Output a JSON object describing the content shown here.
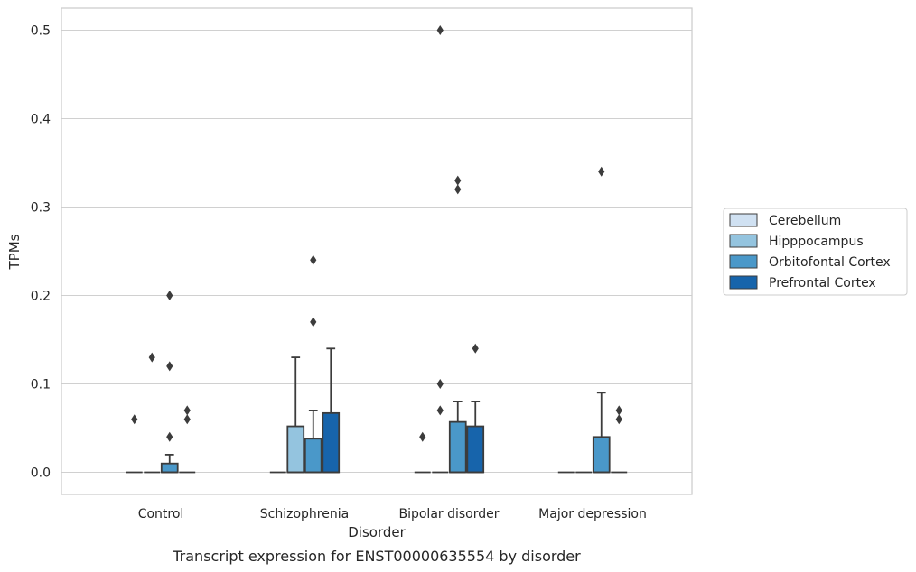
{
  "chart_data": {
    "type": "box",
    "title": "",
    "caption": "Transcript expression for ENST00000635554 by disorder",
    "xlabel": "Disorder",
    "ylabel": "TPMs",
    "ylim": [
      -0.025,
      0.525
    ],
    "yticks": [
      "0.0",
      "0.1",
      "0.2",
      "0.3",
      "0.4",
      "0.5"
    ],
    "categories": [
      "Control",
      "Schizophrenia",
      "Bipolar disorder",
      "Major depression"
    ],
    "grid": true,
    "legend_position": "right",
    "series": [
      {
        "name": "Cerebellum",
        "color": "#d0e1f2",
        "boxes": [
          {
            "q1": 0,
            "median": 0,
            "q3": 0,
            "whisker_low": 0,
            "whisker_high": 0,
            "outliers": [
              0.06
            ]
          },
          {
            "q1": 0,
            "median": 0,
            "q3": 0,
            "whisker_low": 0,
            "whisker_high": 0,
            "outliers": []
          },
          {
            "q1": 0,
            "median": 0,
            "q3": 0,
            "whisker_low": 0,
            "whisker_high": 0,
            "outliers": [
              0.04
            ]
          },
          {
            "q1": 0,
            "median": 0,
            "q3": 0,
            "whisker_low": 0,
            "whisker_high": 0,
            "outliers": []
          }
        ]
      },
      {
        "name": "Hipppocampus",
        "color": "#94c4df",
        "boxes": [
          {
            "q1": 0,
            "median": 0,
            "q3": 0,
            "whisker_low": 0,
            "whisker_high": 0,
            "outliers": [
              0.13
            ]
          },
          {
            "q1": 0,
            "median": 0,
            "q3": 0.052,
            "whisker_low": 0,
            "whisker_high": 0.13,
            "outliers": []
          },
          {
            "q1": 0,
            "median": 0,
            "q3": 0,
            "whisker_low": 0,
            "whisker_high": 0,
            "outliers": [
              0.07,
              0.1,
              0.5
            ]
          },
          {
            "q1": 0,
            "median": 0,
            "q3": 0,
            "whisker_low": 0,
            "whisker_high": 0,
            "outliers": []
          }
        ]
      },
      {
        "name": "Orbitofontal Cortex",
        "color": "#4a98c9",
        "boxes": [
          {
            "q1": 0,
            "median": 0,
            "q3": 0.01,
            "whisker_low": 0,
            "whisker_high": 0.02,
            "outliers": [
              0.04,
              0.12,
              0.2
            ]
          },
          {
            "q1": 0,
            "median": 0,
            "q3": 0.038,
            "whisker_low": 0,
            "whisker_high": 0.07,
            "outliers": [
              0.17,
              0.24
            ]
          },
          {
            "q1": 0,
            "median": 0,
            "q3": 0.057,
            "whisker_low": 0,
            "whisker_high": 0.08,
            "outliers": [
              0.32,
              0.33
            ]
          },
          {
            "q1": 0,
            "median": 0,
            "q3": 0.04,
            "whisker_low": 0,
            "whisker_high": 0.09,
            "outliers": [
              0.34
            ]
          }
        ]
      },
      {
        "name": "Prefrontal Cortex",
        "color": "#1764ab",
        "boxes": [
          {
            "q1": 0,
            "median": 0,
            "q3": 0,
            "whisker_low": 0,
            "whisker_high": 0,
            "outliers": [
              0.06,
              0.07
            ]
          },
          {
            "q1": 0,
            "median": 0,
            "q3": 0.067,
            "whisker_low": 0,
            "whisker_high": 0.14,
            "outliers": []
          },
          {
            "q1": 0,
            "median": 0,
            "q3": 0.052,
            "whisker_low": 0,
            "whisker_high": 0.08,
            "outliers": [
              0.14
            ]
          },
          {
            "q1": 0,
            "median": 0,
            "q3": 0,
            "whisker_low": 0,
            "whisker_high": 0,
            "outliers": [
              0.06,
              0.07
            ]
          }
        ]
      }
    ]
  }
}
